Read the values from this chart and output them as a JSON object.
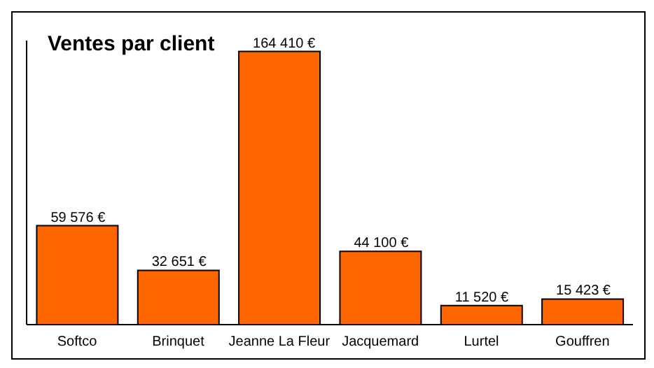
{
  "chart_data": {
    "type": "bar",
    "title": "Ventes par client",
    "categories": [
      "Softco",
      "Brinquet",
      "Jeanne La Fleur",
      "Jacquemard",
      "Lurtel",
      "Gouffren"
    ],
    "values": [
      59576,
      32651,
      164410,
      44100,
      11520,
      15423
    ],
    "value_labels": [
      "59 576 €",
      "32 651 €",
      "164 410 €",
      "44 100 €",
      "11 520 €",
      "15 423 €"
    ],
    "color": "#ff6600"
  }
}
